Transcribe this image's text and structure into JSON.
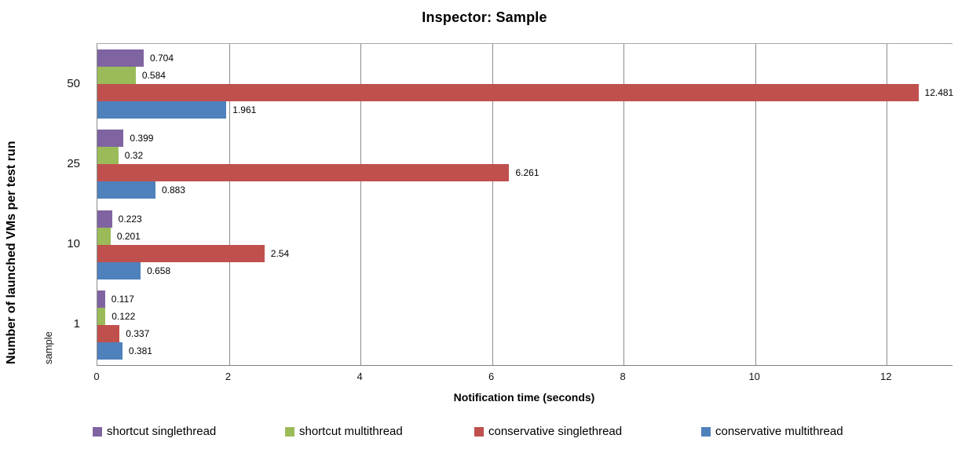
{
  "chart_data": {
    "type": "bar",
    "orientation": "horizontal",
    "title": "Inspector: Sample",
    "xlabel": "Notification time (seconds)",
    "ylabel": "Number of launched VMs per test run",
    "ylabel_secondary": "sample",
    "categories": [
      "50",
      "25",
      "10",
      "1"
    ],
    "series": [
      {
        "name": "shortcut singlethread",
        "color": "#8064A2",
        "values": [
          0.704,
          0.399,
          0.223,
          0.117
        ],
        "labels": [
          "0.704",
          "0.399",
          "0.223",
          "0.117"
        ]
      },
      {
        "name": "shortcut multithread",
        "color": "#9BBB59",
        "values": [
          0.584,
          0.32,
          0.201,
          0.122
        ],
        "labels": [
          "0.584",
          "0.32",
          "0.201",
          "0.122"
        ]
      },
      {
        "name": "conservative singlethread",
        "color": "#C0504D",
        "values": [
          12.481,
          6.261,
          2.54,
          0.337
        ],
        "labels": [
          "12.481",
          "6.261",
          "2.54",
          "0.337"
        ]
      },
      {
        "name": "conservative multithread",
        "color": "#4F81BD",
        "values": [
          1.961,
          0.883,
          0.658,
          0.381
        ],
        "labels": [
          "1.961",
          "0.883",
          "0.658",
          "0.381"
        ]
      }
    ],
    "xlim": [
      0,
      13
    ],
    "xticks": [
      0,
      2,
      4,
      6,
      8,
      10,
      12
    ],
    "grid": "vertical",
    "gridline_color": "#8c8c8c",
    "legend_position": "bottom",
    "data_labels": true
  }
}
